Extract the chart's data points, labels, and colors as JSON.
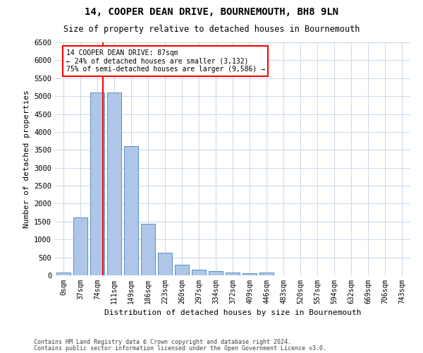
{
  "title": "14, COOPER DEAN DRIVE, BOURNEMOUTH, BH8 9LN",
  "subtitle": "Size of property relative to detached houses in Bournemouth",
  "xlabel": "Distribution of detached houses by size in Bournemouth",
  "ylabel": "Number of detached properties",
  "footer1": "Contains HM Land Registry data © Crown copyright and database right 2024.",
  "footer2": "Contains public sector information licensed under the Open Government Licence v3.0.",
  "bar_labels": [
    "0sqm",
    "37sqm",
    "74sqm",
    "111sqm",
    "149sqm",
    "186sqm",
    "223sqm",
    "260sqm",
    "297sqm",
    "334sqm",
    "372sqm",
    "409sqm",
    "446sqm",
    "483sqm",
    "520sqm",
    "557sqm",
    "594sqm",
    "632sqm",
    "669sqm",
    "706sqm",
    "743sqm"
  ],
  "bar_values": [
    75,
    1620,
    5100,
    5100,
    3600,
    1430,
    630,
    290,
    155,
    110,
    75,
    60,
    75,
    0,
    0,
    0,
    0,
    0,
    0,
    0,
    0
  ],
  "bar_color": "#aec6e8",
  "bar_edge_color": "#5a8fc4",
  "grid_color": "#c8d8e8",
  "property_line_color": "red",
  "annotation_text": "14 COOPER DEAN DRIVE: 87sqm\n← 24% of detached houses are smaller (3,132)\n75% of semi-detached houses are larger (9,586) →",
  "annotation_box_color": "white",
  "annotation_box_edge": "red",
  "ylim": [
    0,
    6500
  ],
  "yticks": [
    0,
    500,
    1000,
    1500,
    2000,
    2500,
    3000,
    3500,
    4000,
    4500,
    5000,
    5500,
    6000,
    6500
  ],
  "figsize": [
    6.0,
    5.0
  ],
  "dpi": 100
}
